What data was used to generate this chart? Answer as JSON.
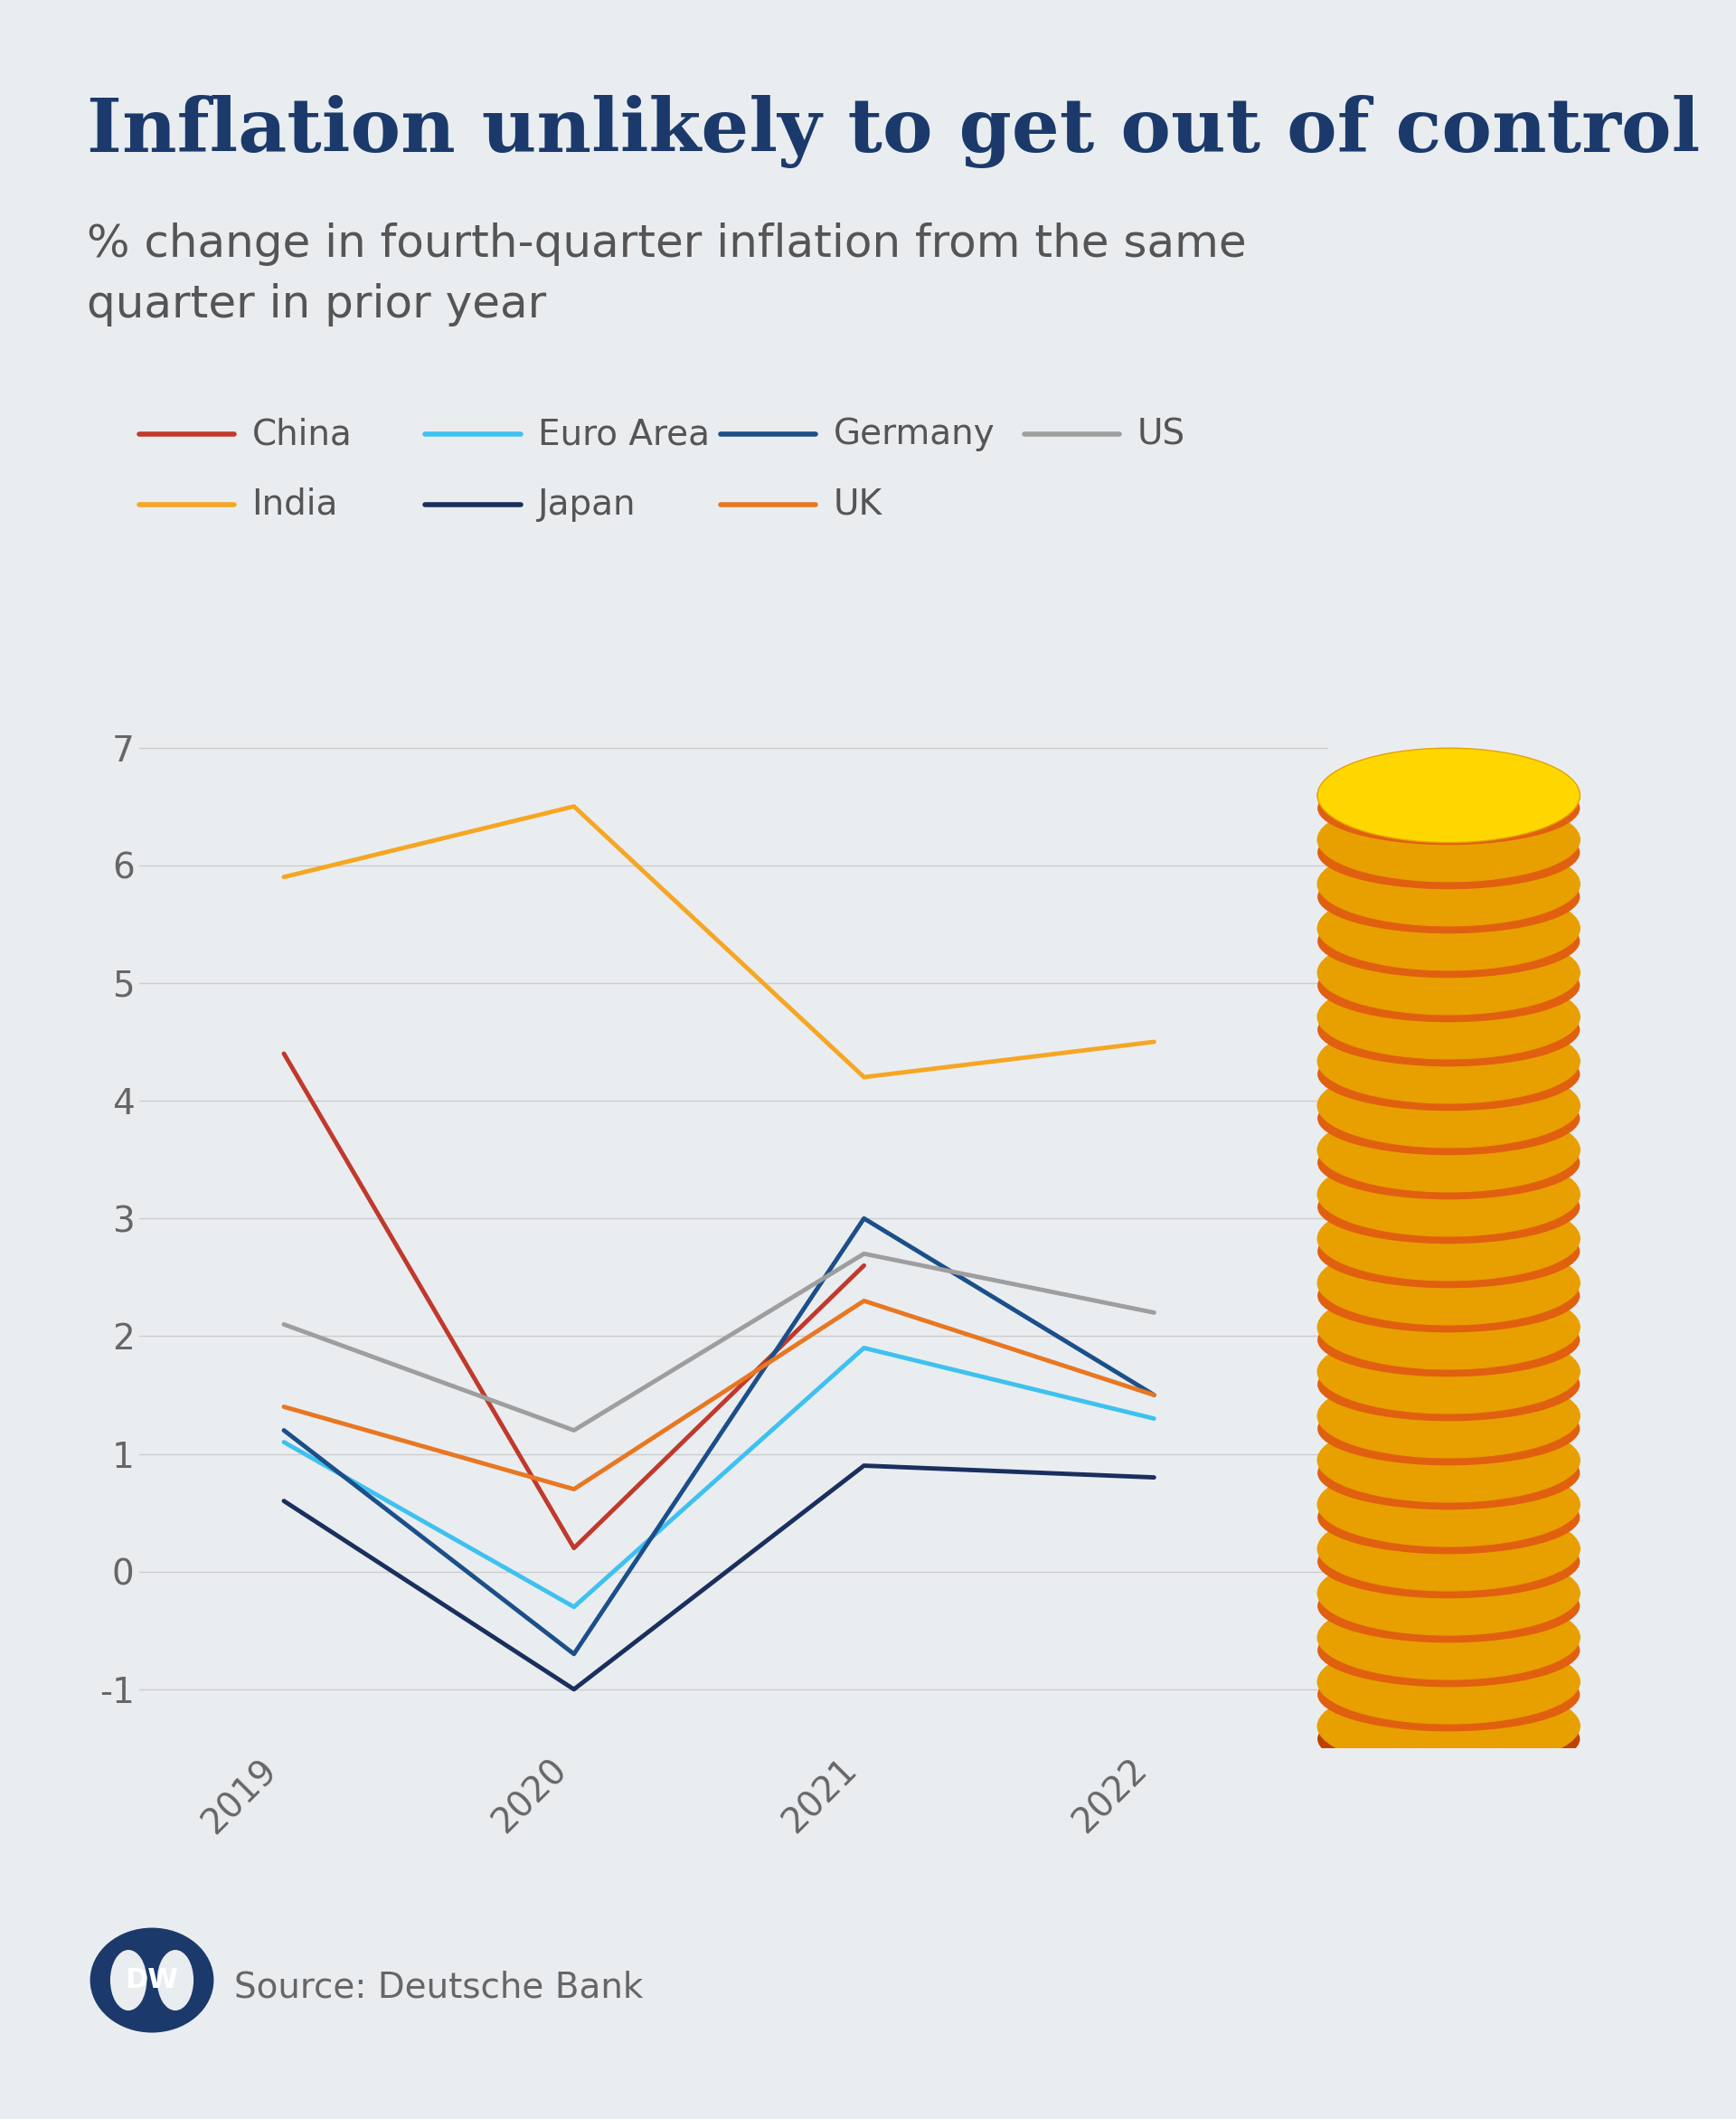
{
  "title": "Inflation unlikely to get out of control",
  "subtitle": "% change in fourth-quarter inflation from the same\nquarter in prior year",
  "source": "Source: Deutsche Bank",
  "background_color": "#EAEDF0",
  "years": [
    2019,
    2020,
    2021,
    2022
  ],
  "series": [
    {
      "label": "China",
      "color": "#C0392B",
      "values": [
        4.4,
        0.2,
        2.6,
        null
      ]
    },
    {
      "label": "Euro Area",
      "color": "#3FC1F0",
      "values": [
        1.1,
        -0.3,
        1.9,
        1.3
      ]
    },
    {
      "label": "Germany",
      "color": "#1B4F8A",
      "values": [
        1.2,
        -0.7,
        3.0,
        1.5
      ]
    },
    {
      "label": "US",
      "color": "#9E9E9E",
      "values": [
        2.1,
        1.2,
        2.7,
        2.2
      ]
    },
    {
      "label": "India",
      "color": "#F5A623",
      "values": [
        5.9,
        6.5,
        4.2,
        4.5
      ]
    },
    {
      "label": "Japan",
      "color": "#1A2F5E",
      "values": [
        0.6,
        -1.0,
        0.9,
        0.8
      ]
    },
    {
      "label": "UK",
      "color": "#E87722",
      "values": [
        1.4,
        0.7,
        2.3,
        1.5
      ]
    }
  ],
  "ylim": [
    -1.5,
    7.5
  ],
  "yticks": [
    -1,
    0,
    1,
    2,
    3,
    4,
    5,
    6,
    7
  ],
  "title_color": "#1B3A6B",
  "subtitle_color": "#555555",
  "axis_color": "#666666",
  "grid_color": "#CCCCCC",
  "linewidth": 3.5,
  "n_coins": 22,
  "coin_gold_top": "#FFD700",
  "coin_gold_edge": "#E8A000",
  "coin_orange_side": "#E06010",
  "coin_dark_side": "#C04000"
}
